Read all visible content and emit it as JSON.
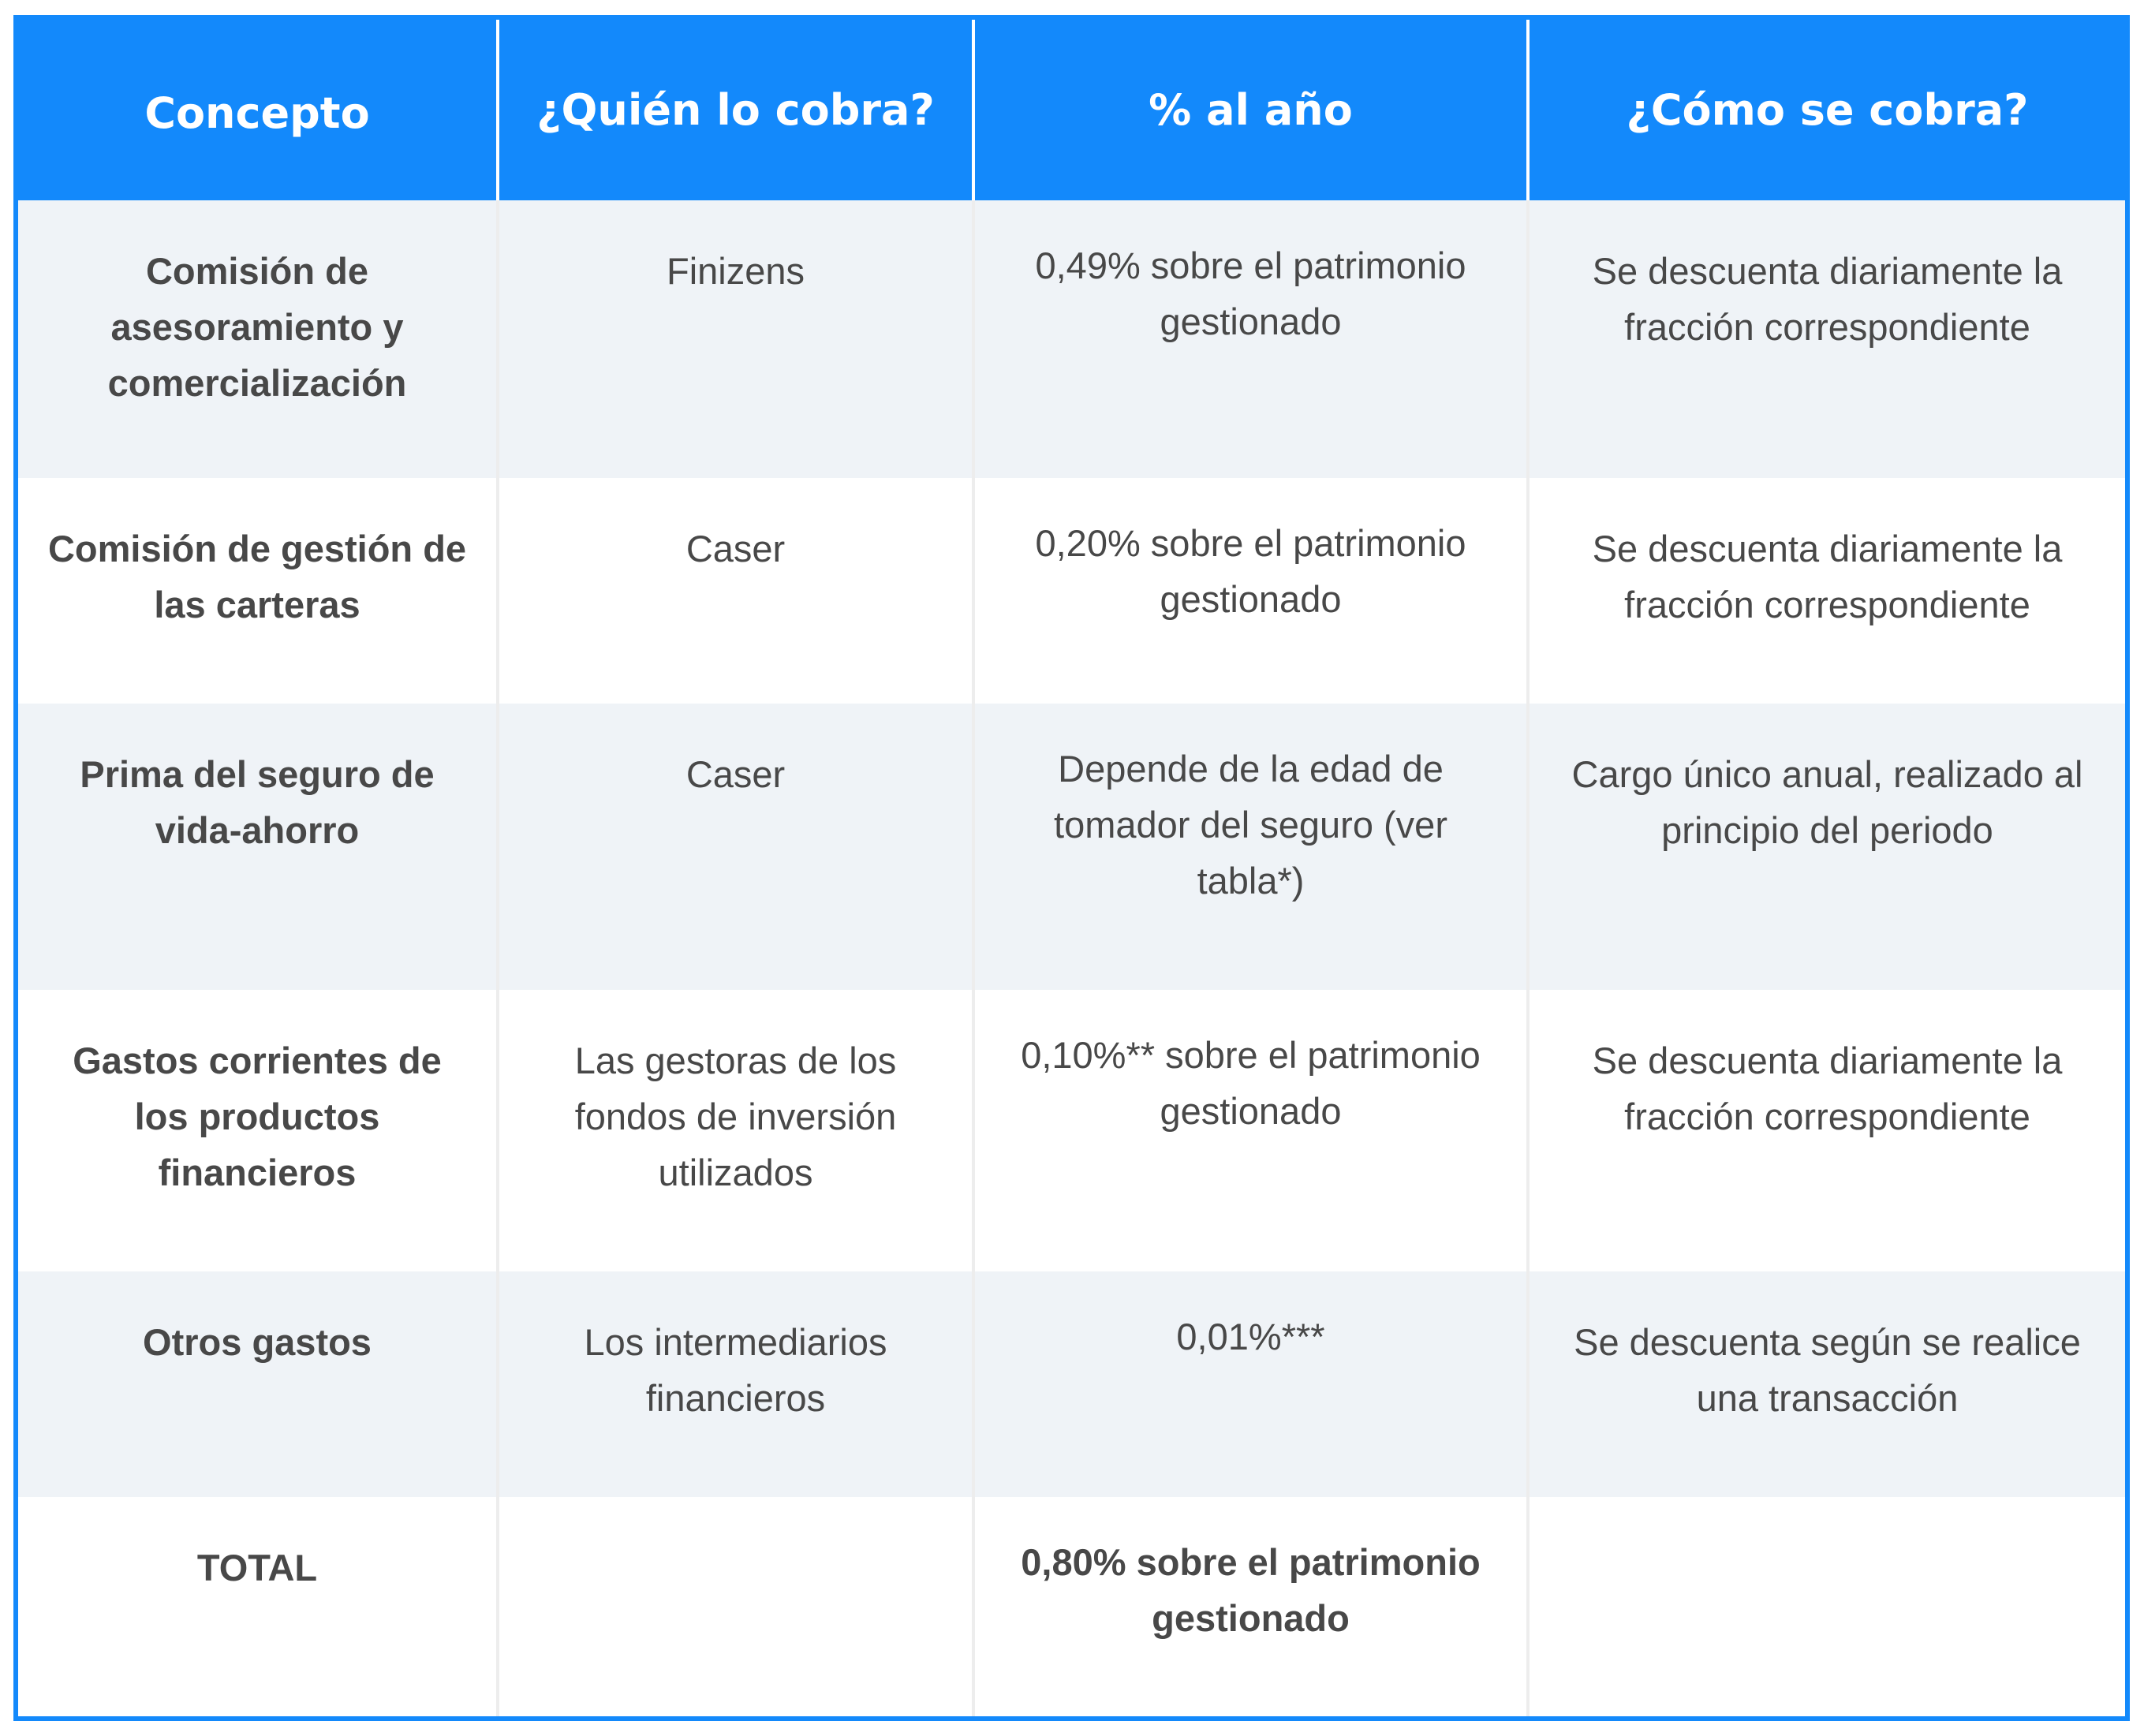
{
  "table": {
    "headers": [
      "Concepto",
      "¿Quién lo cobra?",
      "% al año",
      "¿Cómo se cobra?"
    ],
    "rows": [
      {
        "concepto": "Comisión de asesoramiento y comercialización",
        "quien": "Finizens",
        "porcentaje": "0,49% sobre el patrimonio gestionado",
        "como": "Se descuenta diariamente la fracción correspondiente"
      },
      {
        "concepto": "Comisión de gestión de las carteras",
        "quien": "Caser",
        "porcentaje": "0,20% sobre el patrimonio gestionado",
        "como": "Se descuenta diariamente la fracción correspondiente"
      },
      {
        "concepto": "Prima del seguro de vida-ahorro",
        "quien": "Caser",
        "porcentaje": "Depende de la edad de tomador del seguro (ver tabla*)",
        "como": "Cargo único anual, realizado al principio del periodo"
      },
      {
        "concepto": "Gastos corrientes de los productos financieros",
        "quien": "Las gestoras de los fondos de inversión utilizados",
        "porcentaje": "0,10%** sobre el patrimonio gestionado",
        "como": "Se descuenta diariamente la fracción correspondiente"
      },
      {
        "concepto": "Otros gastos",
        "quien": "Los intermediarios financieros",
        "porcentaje": "0,01%***",
        "como": "Se descuenta según se realice una transacción"
      },
      {
        "concepto": "TOTAL",
        "quien": "",
        "porcentaje": "0,80% sobre el patrimonio gestionado",
        "como": ""
      }
    ]
  },
  "colors": {
    "header_background": "#1389fb",
    "header_text": "#ffffff",
    "row_shade": "#eff3f7",
    "body_text": "#484848"
  }
}
